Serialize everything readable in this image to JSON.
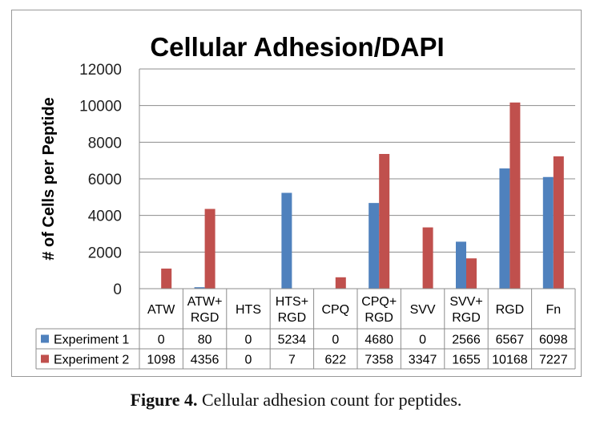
{
  "chart_data": {
    "type": "bar",
    "title": "Cellular Adhesion/DAPI",
    "ylabel": "# of Cells per Peptide",
    "xlabel": "",
    "ylim": [
      0,
      12000
    ],
    "yticks": [
      0,
      2000,
      4000,
      6000,
      8000,
      10000,
      12000
    ],
    "grid": true,
    "legend": "data-table",
    "categories": [
      [
        "ATW"
      ],
      [
        "ATW+",
        "RGD"
      ],
      [
        "HTS"
      ],
      [
        "HTS+",
        "RGD"
      ],
      [
        "CPQ"
      ],
      [
        "CPQ+",
        "RGD"
      ],
      [
        "SVV"
      ],
      [
        "SVV+",
        "RGD"
      ],
      [
        "RGD"
      ],
      [
        "Fn"
      ]
    ],
    "series": [
      {
        "name": "Experiment 1",
        "color": "#4F81BD",
        "values": [
          0,
          80,
          0,
          5234,
          0,
          4680,
          0,
          2566,
          6567,
          6098
        ]
      },
      {
        "name": "Experiment 2",
        "color": "#C0504D",
        "values": [
          1098,
          4356,
          0,
          7,
          622,
          7358,
          3347,
          1655,
          10168,
          7227
        ]
      }
    ]
  },
  "caption": {
    "label": "Figure 4.",
    "text": " Cellular adhesion count for peptides."
  }
}
